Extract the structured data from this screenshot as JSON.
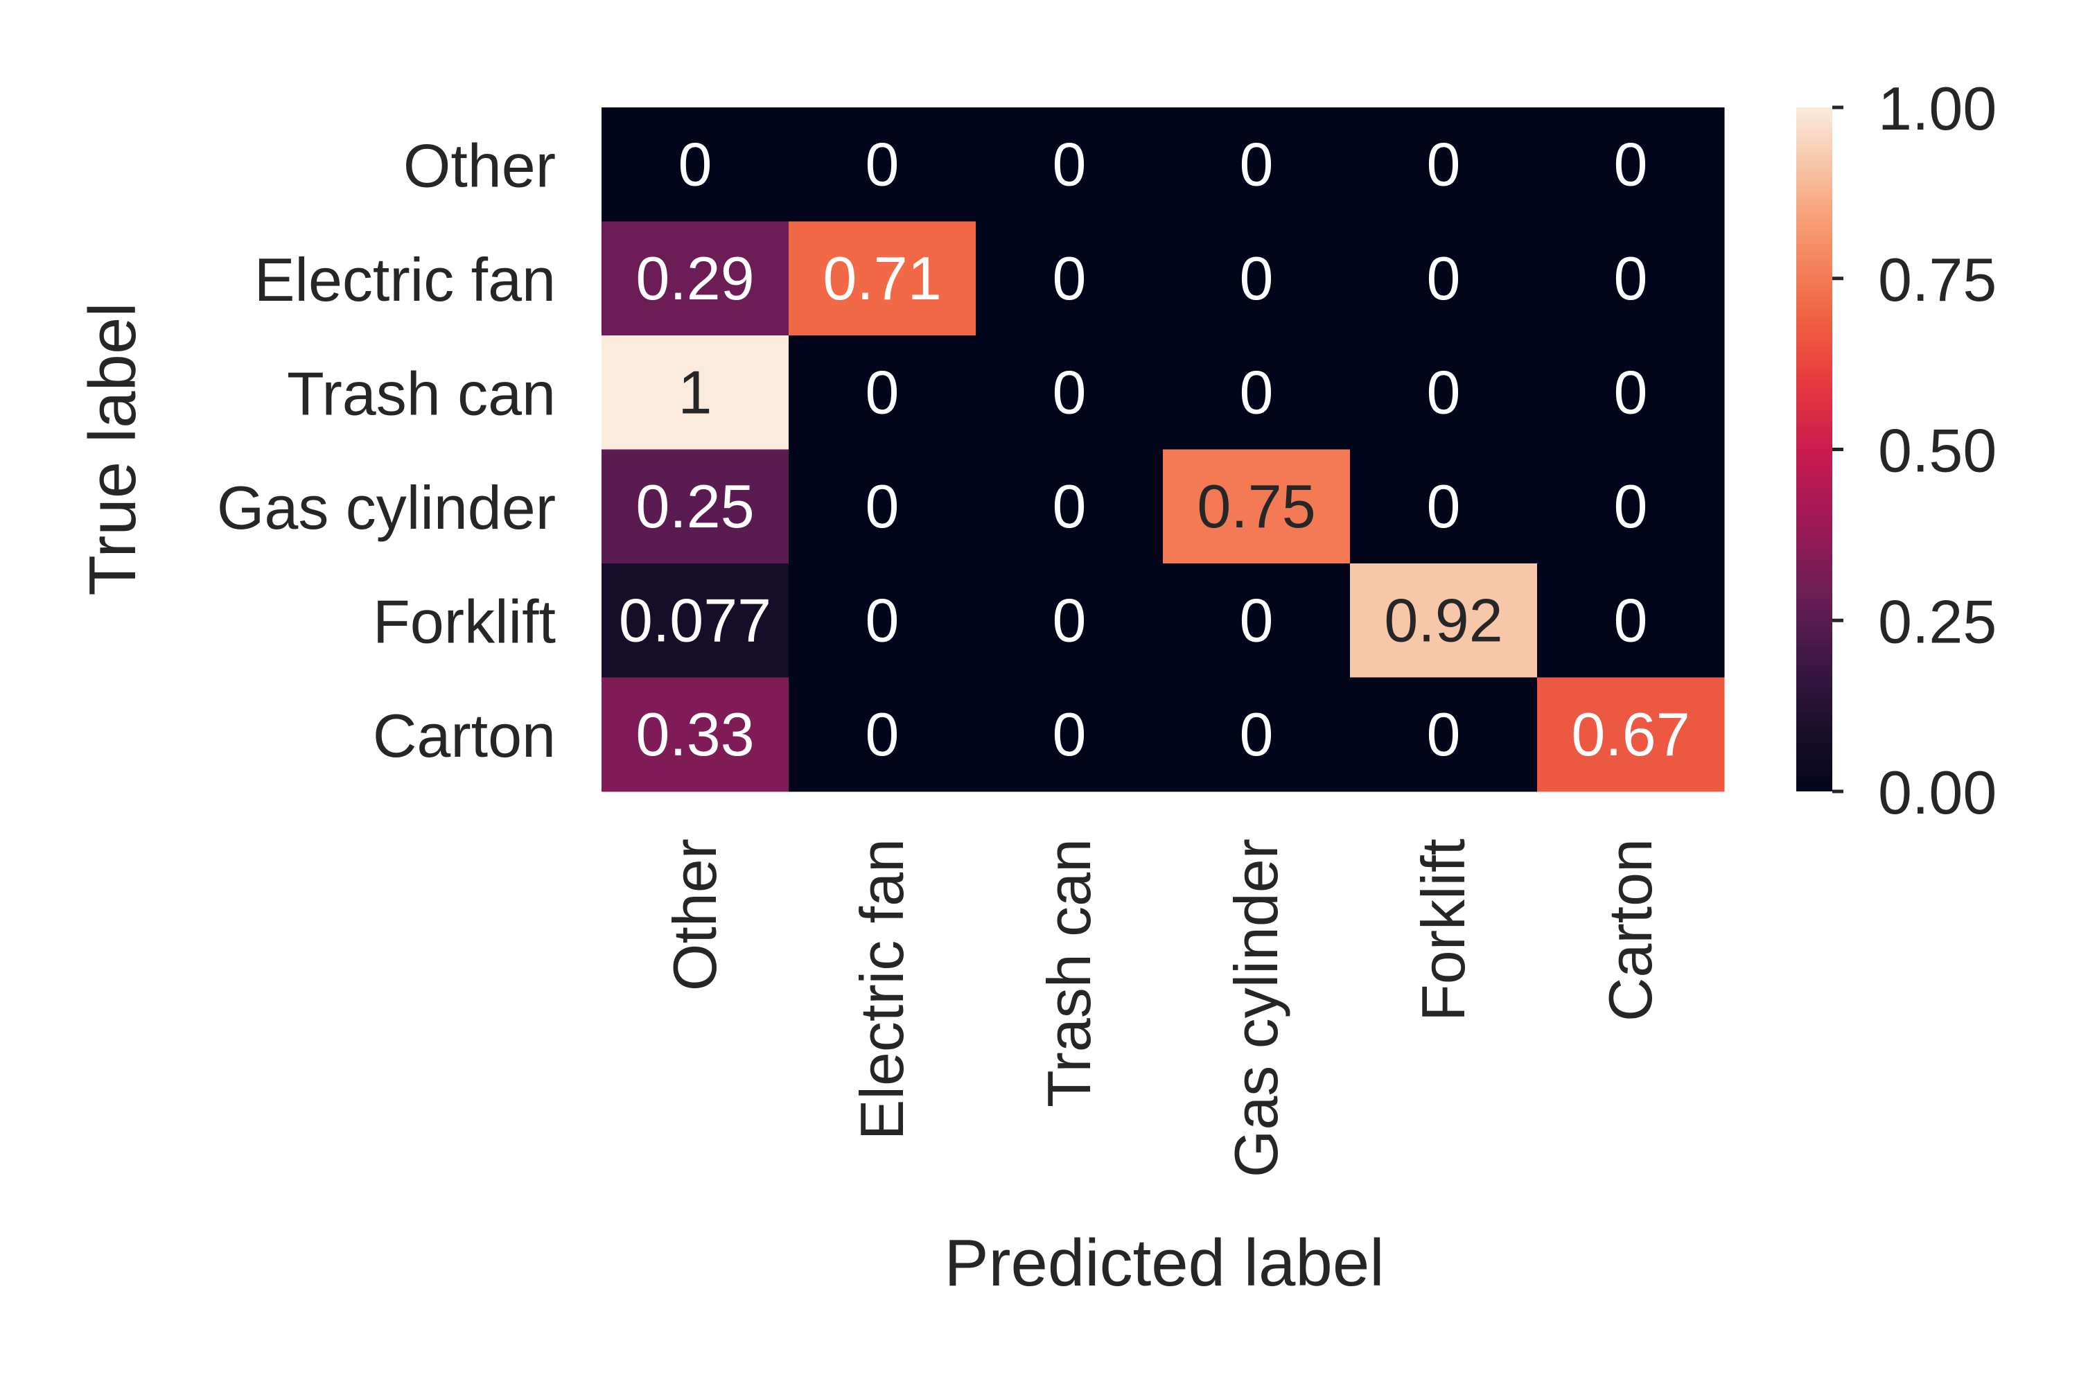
{
  "chart_data": {
    "type": "heatmap",
    "xlabel": "Predicted label",
    "ylabel": "True label",
    "x_categories": [
      "Other",
      "Electric fan",
      "Trash can",
      "Gas cylinder",
      "Forklift",
      "Carton"
    ],
    "y_categories": [
      "Other",
      "Electric fan",
      "Trash can",
      "Gas cylinder",
      "Forklift",
      "Carton"
    ],
    "values": [
      [
        0,
        0,
        0,
        0,
        0,
        0
      ],
      [
        0.29,
        0.71,
        0,
        0,
        0,
        0
      ],
      [
        1,
        0,
        0,
        0,
        0,
        0
      ],
      [
        0.25,
        0,
        0,
        0.75,
        0,
        0
      ],
      [
        0.077,
        0,
        0,
        0,
        0.92,
        0
      ],
      [
        0.33,
        0,
        0,
        0,
        0,
        0.67
      ]
    ],
    "cell_labels": [
      [
        "0",
        "0",
        "0",
        "0",
        "0",
        "0"
      ],
      [
        "0.29",
        "0.71",
        "0",
        "0",
        "0",
        "0"
      ],
      [
        "1",
        "0",
        "0",
        "0",
        "0",
        "0"
      ],
      [
        "0.25",
        "0",
        "0",
        "0.75",
        "0",
        "0"
      ],
      [
        "0.077",
        "0",
        "0",
        "0",
        "0.92",
        "0"
      ],
      [
        "0.33",
        "0",
        "0",
        "0",
        "0",
        "0.67"
      ]
    ],
    "colorbar": {
      "range": [
        0,
        1
      ],
      "ticks": [
        0,
        0.25,
        0.5,
        0.75,
        1
      ],
      "tick_labels": [
        "0.00",
        "0.25",
        "0.50",
        "0.75",
        "1.00"
      ]
    },
    "colormap": "rocket",
    "grid": false,
    "legend": "colorbar-right"
  }
}
